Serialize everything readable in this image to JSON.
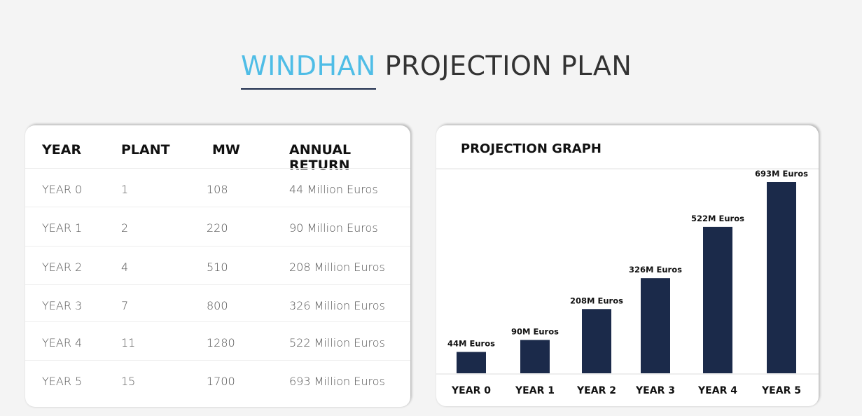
{
  "title": {
    "accent": "WINDHAN",
    "rest": "PROJECTION PLAN"
  },
  "table": {
    "headers": [
      "YEAR",
      "PLANT",
      "MW",
      "ANNUAL RETURN"
    ],
    "rows": [
      [
        "YEAR 0",
        "1",
        "108",
        "44 Million Euros"
      ],
      [
        "YEAR 1",
        "2",
        "220",
        "90 Million Euros"
      ],
      [
        "YEAR 2",
        "4",
        "510",
        "208 Million Euros"
      ],
      [
        "YEAR 3",
        "7",
        "800",
        "326 Million Euros"
      ],
      [
        "YEAR 4",
        "11",
        "1280",
        "522 Million Euros"
      ],
      [
        "YEAR 5",
        "15",
        "1700",
        "693 Million Euros"
      ]
    ]
  },
  "chart_data": {
    "type": "bar",
    "title": "PROJECTION GRAPH",
    "categories": [
      "YEAR 0",
      "YEAR 1",
      "YEAR 2",
      "YEAR 3",
      "YEAR 4",
      "YEAR 5"
    ],
    "values": [
      44,
      90,
      208,
      326,
      522,
      693
    ],
    "labels": [
      "44M Euros",
      "90M Euros",
      "208M Euros",
      "326M Euros",
      "522M Euros",
      "693M Euros"
    ],
    "unit": "Million Euros",
    "bar_color": "#1b2a4a",
    "grid": false
  }
}
